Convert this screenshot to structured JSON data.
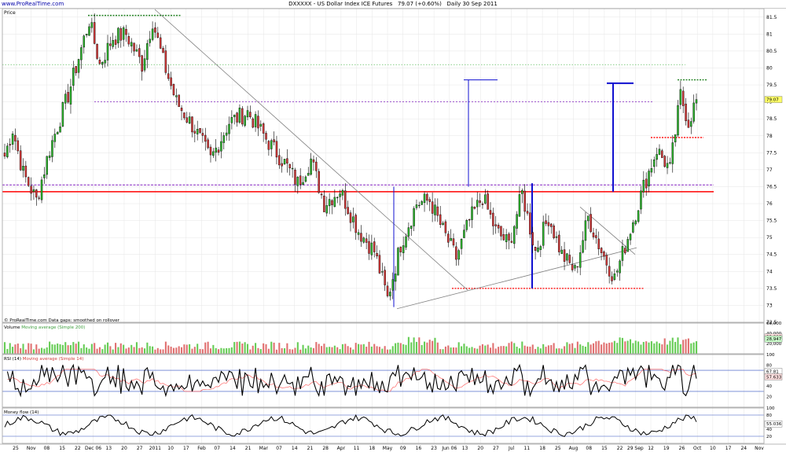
{
  "header": {
    "brand": "www.ProRealTime.com",
    "title_symbol": "DXXXXX - US Dollar Index ICE Futures",
    "title_last": "79.07 (+0.60%)",
    "title_period": "Daily  30 Sep 2011"
  },
  "panels": {
    "price": {
      "label": "Price",
      "footer_note": "© ProRealTime.com  Data gaps: smoothed on rollover",
      "last_value_tag": "79.07"
    },
    "volume": {
      "label": "Volume",
      "ma_label": "Moving average (Simple 200)",
      "ticks": [
        "60,000",
        "40,000",
        "20,000"
      ],
      "value_tags": [
        "32,898",
        "28,947"
      ]
    },
    "rsi": {
      "label": "RSI (14)",
      "ma_label": "Moving average (Simple 14)",
      "ticks": [
        "100",
        "80",
        "60",
        "40",
        "20"
      ],
      "value_tags": [
        "67.81",
        "57.633"
      ]
    },
    "mfi": {
      "label": "Money flow (14)",
      "ticks": [
        "100",
        "80",
        "60",
        "40",
        "20"
      ],
      "value_tag": "55.036"
    }
  },
  "colors": {
    "up": "#2db82d",
    "down": "#d63838",
    "vol_up": "#66cc55",
    "vol_down": "#e07070",
    "support": "#ff0000",
    "resistance": "#8020c0",
    "trend": "#808080",
    "target": "#1010d0",
    "ma": "#ff5050",
    "grid": "#e6e6e6"
  },
  "chart_data": [
    {
      "type": "candlestick",
      "name": "US Dollar Index ICE Futures, daily",
      "y_ticks": [
        "72.5",
        "73",
        "73.5",
        "74",
        "74.5",
        "75",
        "75.5",
        "76",
        "76.5",
        "77",
        "77.5",
        "78",
        "78.5",
        "79",
        "79.5",
        "80",
        "80.5",
        "81",
        "81.5"
      ],
      "ylim": [
        72.5,
        81.75
      ],
      "x_ticks": [
        "25",
        "Nov",
        "08",
        "15",
        "22",
        "Dec 06",
        "13",
        "20",
        "27",
        "2011",
        "10",
        "17",
        "Feb",
        "07",
        "14",
        "21",
        "Mar",
        "07",
        "14",
        "21",
        "28",
        "Apr",
        "11",
        "18",
        "May",
        "09",
        "16",
        "23",
        "Jun 06",
        "13",
        "20",
        "27",
        "Jul",
        "11",
        "18",
        "25",
        "Aug",
        "08",
        "15",
        "22",
        "29 Sep",
        "12",
        "19",
        "26",
        "Oct",
        "10",
        "17",
        "24",
        "Nov"
      ],
      "anchors": [
        [
          0,
          77.4
        ],
        [
          3,
          78.2
        ],
        [
          7,
          76.9
        ],
        [
          12,
          76.1
        ],
        [
          17,
          77.6
        ],
        [
          24,
          79.2
        ],
        [
          32,
          81.4
        ],
        [
          36,
          80.1
        ],
        [
          41,
          80.9
        ],
        [
          46,
          81.0
        ],
        [
          52,
          80.1
        ],
        [
          56,
          81.4
        ],
        [
          60,
          80.2
        ],
        [
          65,
          79.0
        ],
        [
          72,
          78.2
        ],
        [
          78,
          77.3
        ],
        [
          85,
          78.4
        ],
        [
          92,
          78.7
        ],
        [
          100,
          77.8
        ],
        [
          106,
          77.2
        ],
        [
          111,
          76.6
        ],
        [
          116,
          77.3
        ],
        [
          121,
          76.0
        ],
        [
          127,
          76.4
        ],
        [
          134,
          75.2
        ],
        [
          140,
          74.6
        ],
        [
          145,
          73.2
        ],
        [
          150,
          74.8
        ],
        [
          156,
          76.0
        ],
        [
          161,
          76.1
        ],
        [
          166,
          75.2
        ],
        [
          171,
          74.4
        ],
        [
          176,
          75.5
        ],
        [
          181,
          76.2
        ],
        [
          186,
          75.2
        ],
        [
          191,
          74.8
        ],
        [
          196,
          76.3
        ],
        [
          201,
          74.6
        ],
        [
          206,
          75.6
        ],
        [
          211,
          74.5
        ],
        [
          216,
          74.0
        ],
        [
          221,
          75.6
        ],
        [
          226,
          74.6
        ],
        [
          231,
          73.8
        ],
        [
          236,
          75.0
        ],
        [
          242,
          76.5
        ],
        [
          247,
          77.6
        ],
        [
          252,
          77.0
        ],
        [
          256,
          79.2
        ],
        [
          259,
          78.4
        ],
        [
          262,
          79.07
        ]
      ],
      "ref_lines": {
        "support_red": 76.35,
        "resistance_purple": 76.55,
        "resistance_purple_2": 79.0,
        "green_dotted_top": 80.1,
        "green_dotted_high": 81.55,
        "green_dotted_right": 79.65,
        "red_dotted_low": 73.5,
        "red_dotted_right": 77.95
      }
    },
    {
      "type": "bar",
      "name": "Volume",
      "ylim": [
        0,
        60000
      ]
    },
    {
      "type": "line",
      "name": "RSI (14)",
      "ylim": [
        0,
        100
      ],
      "last": 67.81
    },
    {
      "type": "line",
      "name": "Money flow (14)",
      "ylim": [
        0,
        100
      ],
      "last": 55.036
    }
  ]
}
